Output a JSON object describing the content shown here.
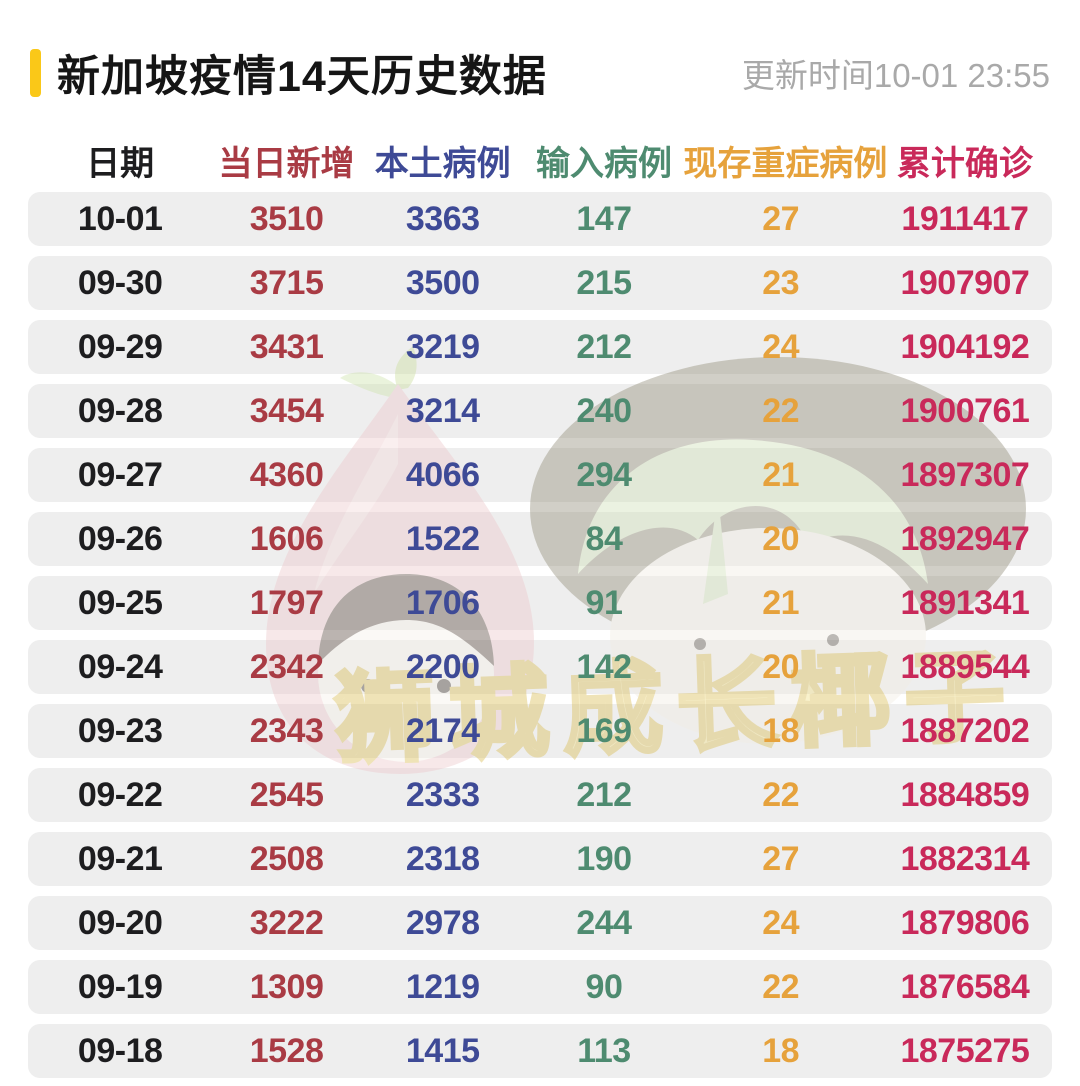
{
  "header": {
    "title": "新加坡疫情14天历史数据",
    "update_time": "更新时间10-01 23:55"
  },
  "colors": {
    "accent_yellow": "#fac818",
    "row_background": "#eeeeee",
    "date": "#1d1d1f",
    "new_cases": "#a93b44",
    "local_cases": "#3e4a96",
    "imported_cases": "#4e8b70",
    "severe_cases": "#e6a23c",
    "total_cases": "#c9295a"
  },
  "table": {
    "columns": [
      {
        "key": "date",
        "label": "日期",
        "color": "#1d1d1f"
      },
      {
        "key": "new",
        "label": "当日新增",
        "color": "#a93b44"
      },
      {
        "key": "local",
        "label": "本土病例",
        "color": "#3e4a96"
      },
      {
        "key": "imported",
        "label": "输入病例",
        "color": "#4e8b70"
      },
      {
        "key": "severe",
        "label": "现存重症病例",
        "color": "#e6a23c"
      },
      {
        "key": "total",
        "label": "累计确诊",
        "color": "#c9295a"
      }
    ],
    "rows": [
      [
        "10-01",
        "3510",
        "3363",
        "147",
        "27",
        "1911417"
      ],
      [
        "09-30",
        "3715",
        "3500",
        "215",
        "23",
        "1907907"
      ],
      [
        "09-29",
        "3431",
        "3219",
        "212",
        "24",
        "1904192"
      ],
      [
        "09-28",
        "3454",
        "3214",
        "240",
        "22",
        "1900761"
      ],
      [
        "09-27",
        "4360",
        "4066",
        "294",
        "21",
        "1897307"
      ],
      [
        "09-26",
        "1606",
        "1522",
        "84",
        "20",
        "1892947"
      ],
      [
        "09-25",
        "1797",
        "1706",
        "91",
        "21",
        "1891341"
      ],
      [
        "09-24",
        "2342",
        "2200",
        "142",
        "20",
        "1889544"
      ],
      [
        "09-23",
        "2343",
        "2174",
        "169",
        "18",
        "1887202"
      ],
      [
        "09-22",
        "2545",
        "2333",
        "212",
        "22",
        "1884859"
      ],
      [
        "09-21",
        "2508",
        "2318",
        "190",
        "27",
        "1882314"
      ],
      [
        "09-20",
        "3222",
        "2978",
        "244",
        "24",
        "1879806"
      ],
      [
        "09-19",
        "1309",
        "1219",
        "90",
        "22",
        "1876584"
      ],
      [
        "09-18",
        "1528",
        "1415",
        "113",
        "18",
        "1875275"
      ]
    ]
  },
  "watermark": {
    "text": "狮城成长椰子"
  }
}
